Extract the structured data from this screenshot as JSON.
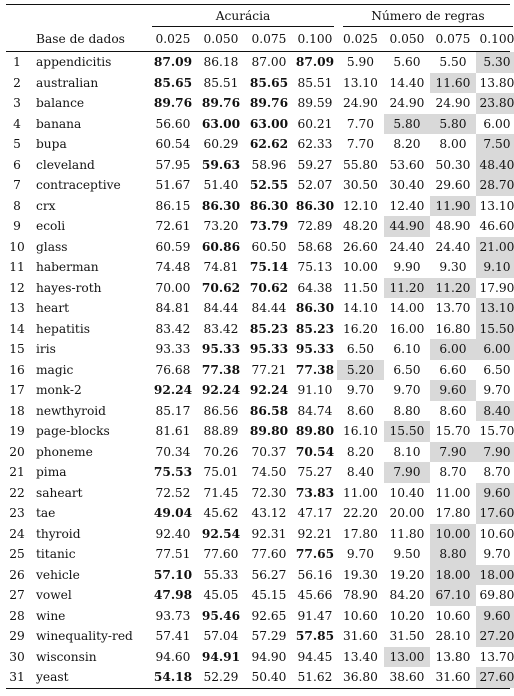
{
  "header": {
    "group_accuracy": "Acurácia",
    "group_rules": "Número de regras",
    "col_dataset": "Base de dados",
    "thresholds": [
      "0.025",
      "0.050",
      "0.075",
      "0.100",
      "0.025",
      "0.050",
      "0.075",
      "0.100"
    ]
  },
  "rows": [
    {
      "idx": "1",
      "name": "appendicitis",
      "acc": [
        "87.09",
        "86.18",
        "87.00",
        "87.09"
      ],
      "rules": [
        "5.90",
        "5.60",
        "5.50",
        "5.30"
      ],
      "bold": [
        0,
        3
      ],
      "hl": [
        3
      ]
    },
    {
      "idx": "2",
      "name": "australian",
      "acc": [
        "85.65",
        "85.51",
        "85.65",
        "85.51"
      ],
      "rules": [
        "13.10",
        "14.40",
        "11.60",
        "13.80"
      ],
      "bold": [
        0,
        2
      ],
      "hl": [
        2
      ]
    },
    {
      "idx": "3",
      "name": "balance",
      "acc": [
        "89.76",
        "89.76",
        "89.76",
        "89.59"
      ],
      "rules": [
        "24.90",
        "24.90",
        "24.90",
        "23.80"
      ],
      "bold": [
        0,
        1,
        2
      ],
      "hl": [
        3
      ]
    },
    {
      "idx": "4",
      "name": "banana",
      "acc": [
        "56.60",
        "63.00",
        "63.00",
        "60.21"
      ],
      "rules": [
        "7.70",
        "5.80",
        "5.80",
        "6.00"
      ],
      "bold": [
        1,
        2
      ],
      "hl": [
        1,
        2
      ]
    },
    {
      "idx": "5",
      "name": "bupa",
      "acc": [
        "60.54",
        "60.29",
        "62.62",
        "62.33"
      ],
      "rules": [
        "7.70",
        "8.20",
        "8.00",
        "7.50"
      ],
      "bold": [
        2
      ],
      "hl": [
        3
      ]
    },
    {
      "idx": "6",
      "name": "cleveland",
      "acc": [
        "57.95",
        "59.63",
        "58.96",
        "59.27"
      ],
      "rules": [
        "55.80",
        "53.60",
        "50.30",
        "48.40"
      ],
      "bold": [
        1
      ],
      "hl": [
        3
      ]
    },
    {
      "idx": "7",
      "name": "contraceptive",
      "acc": [
        "51.67",
        "51.40",
        "52.55",
        "52.07"
      ],
      "rules": [
        "30.50",
        "30.40",
        "29.60",
        "28.70"
      ],
      "bold": [
        2
      ],
      "hl": [
        3
      ]
    },
    {
      "idx": "8",
      "name": "crx",
      "acc": [
        "86.15",
        "86.30",
        "86.30",
        "86.30"
      ],
      "rules": [
        "12.10",
        "12.40",
        "11.90",
        "13.10"
      ],
      "bold": [
        1,
        2,
        3
      ],
      "hl": [
        2
      ]
    },
    {
      "idx": "9",
      "name": "ecoli",
      "acc": [
        "72.61",
        "73.20",
        "73.79",
        "72.89"
      ],
      "rules": [
        "48.20",
        "44.90",
        "48.90",
        "46.60"
      ],
      "bold": [
        2
      ],
      "hl": [
        1
      ]
    },
    {
      "idx": "10",
      "name": "glass",
      "acc": [
        "60.59",
        "60.86",
        "60.50",
        "58.68"
      ],
      "rules": [
        "26.60",
        "24.40",
        "24.40",
        "21.00"
      ],
      "bold": [
        1
      ],
      "hl": [
        3
      ]
    },
    {
      "idx": "11",
      "name": "haberman",
      "acc": [
        "74.48",
        "74.81",
        "75.14",
        "75.13"
      ],
      "rules": [
        "10.00",
        "9.90",
        "9.30",
        "9.10"
      ],
      "bold": [
        2
      ],
      "hl": [
        3
      ]
    },
    {
      "idx": "12",
      "name": "hayes-roth",
      "acc": [
        "70.00",
        "70.62",
        "70.62",
        "64.38"
      ],
      "rules": [
        "11.50",
        "11.20",
        "11.20",
        "17.90"
      ],
      "bold": [
        1,
        2
      ],
      "hl": [
        1,
        2
      ]
    },
    {
      "idx": "13",
      "name": "heart",
      "acc": [
        "84.81",
        "84.44",
        "84.44",
        "86.30"
      ],
      "rules": [
        "14.10",
        "14.00",
        "13.70",
        "13.10"
      ],
      "bold": [
        3
      ],
      "hl": [
        3
      ]
    },
    {
      "idx": "14",
      "name": "hepatitis",
      "acc": [
        "83.42",
        "83.42",
        "85.23",
        "85.23"
      ],
      "rules": [
        "16.20",
        "16.00",
        "16.80",
        "15.50"
      ],
      "bold": [
        2,
        3
      ],
      "hl": [
        3
      ]
    },
    {
      "idx": "15",
      "name": "iris",
      "acc": [
        "93.33",
        "95.33",
        "95.33",
        "95.33"
      ],
      "rules": [
        "6.50",
        "6.10",
        "6.00",
        "6.00"
      ],
      "bold": [
        1,
        2,
        3
      ],
      "hl": [
        2,
        3
      ]
    },
    {
      "idx": "16",
      "name": "magic",
      "acc": [
        "76.68",
        "77.38",
        "77.21",
        "77.38"
      ],
      "rules": [
        "5.20",
        "6.50",
        "6.60",
        "6.50"
      ],
      "bold": [
        1,
        3
      ],
      "hl": [
        0
      ]
    },
    {
      "idx": "17",
      "name": "monk-2",
      "acc": [
        "92.24",
        "92.24",
        "92.24",
        "91.10"
      ],
      "rules": [
        "9.70",
        "9.70",
        "9.60",
        "9.70"
      ],
      "bold": [
        0,
        1,
        2
      ],
      "hl": [
        2
      ]
    },
    {
      "idx": "18",
      "name": "newthyroid",
      "acc": [
        "85.17",
        "86.56",
        "86.58",
        "84.74"
      ],
      "rules": [
        "8.60",
        "8.80",
        "8.60",
        "8.40"
      ],
      "bold": [
        2
      ],
      "hl": [
        3
      ]
    },
    {
      "idx": "19",
      "name": "page-blocks",
      "acc": [
        "81.61",
        "88.89",
        "89.80",
        "89.80"
      ],
      "rules": [
        "16.10",
        "15.50",
        "15.70",
        "15.70"
      ],
      "bold": [
        2,
        3
      ],
      "hl": [
        1
      ]
    },
    {
      "idx": "20",
      "name": "phoneme",
      "acc": [
        "70.34",
        "70.26",
        "70.37",
        "70.54"
      ],
      "rules": [
        "8.20",
        "8.10",
        "7.90",
        "7.90"
      ],
      "bold": [
        3
      ],
      "hl": [
        2,
        3
      ]
    },
    {
      "idx": "21",
      "name": "pima",
      "acc": [
        "75.53",
        "75.01",
        "74.50",
        "75.27"
      ],
      "rules": [
        "8.40",
        "7.90",
        "8.70",
        "8.70"
      ],
      "bold": [
        0
      ],
      "hl": [
        1
      ]
    },
    {
      "idx": "22",
      "name": "saheart",
      "acc": [
        "72.52",
        "71.45",
        "72.30",
        "73.83"
      ],
      "rules": [
        "11.00",
        "10.40",
        "11.00",
        "9.60"
      ],
      "bold": [
        3
      ],
      "hl": [
        3
      ]
    },
    {
      "idx": "23",
      "name": "tae",
      "acc": [
        "49.04",
        "45.62",
        "43.12",
        "47.17"
      ],
      "rules": [
        "22.20",
        "20.00",
        "17.80",
        "17.60"
      ],
      "bold": [
        0
      ],
      "hl": [
        3
      ]
    },
    {
      "idx": "24",
      "name": "thyroid",
      "acc": [
        "92.40",
        "92.54",
        "92.31",
        "92.21"
      ],
      "rules": [
        "17.80",
        "11.80",
        "10.00",
        "10.60"
      ],
      "bold": [
        1
      ],
      "hl": [
        2
      ]
    },
    {
      "idx": "25",
      "name": "titanic",
      "acc": [
        "77.51",
        "77.60",
        "77.60",
        "77.65"
      ],
      "rules": [
        "9.70",
        "9.50",
        "8.80",
        "9.70"
      ],
      "bold": [
        3
      ],
      "hl": [
        2
      ]
    },
    {
      "idx": "26",
      "name": "vehicle",
      "acc": [
        "57.10",
        "55.33",
        "56.27",
        "56.16"
      ],
      "rules": [
        "19.30",
        "19.20",
        "18.00",
        "18.00"
      ],
      "bold": [
        0
      ],
      "hl": [
        2,
        3
      ]
    },
    {
      "idx": "27",
      "name": "vowel",
      "acc": [
        "47.98",
        "45.05",
        "45.15",
        "45.66"
      ],
      "rules": [
        "78.90",
        "84.20",
        "67.10",
        "69.80"
      ],
      "bold": [
        0
      ],
      "hl": [
        2
      ]
    },
    {
      "idx": "28",
      "name": "wine",
      "acc": [
        "93.73",
        "95.46",
        "92.65",
        "91.47"
      ],
      "rules": [
        "10.60",
        "10.20",
        "10.60",
        "9.60"
      ],
      "bold": [
        1
      ],
      "hl": [
        3
      ]
    },
    {
      "idx": "29",
      "name": "winequality-red",
      "acc": [
        "57.41",
        "57.04",
        "57.29",
        "57.85"
      ],
      "rules": [
        "31.60",
        "31.50",
        "28.10",
        "27.20"
      ],
      "bold": [
        3
      ],
      "hl": [
        3
      ]
    },
    {
      "idx": "30",
      "name": "wisconsin",
      "acc": [
        "94.60",
        "94.91",
        "94.90",
        "94.45"
      ],
      "rules": [
        "13.40",
        "13.00",
        "13.80",
        "13.70"
      ],
      "bold": [
        1
      ],
      "hl": [
        1
      ]
    },
    {
      "idx": "31",
      "name": "yeast",
      "acc": [
        "54.18",
        "52.29",
        "50.40",
        "51.62"
      ],
      "rules": [
        "36.80",
        "38.60",
        "31.60",
        "27.60"
      ],
      "bold": [
        0
      ],
      "hl": [
        3
      ]
    }
  ],
  "style": {
    "highlight": "#d9d9d9",
    "text": "#111111"
  }
}
